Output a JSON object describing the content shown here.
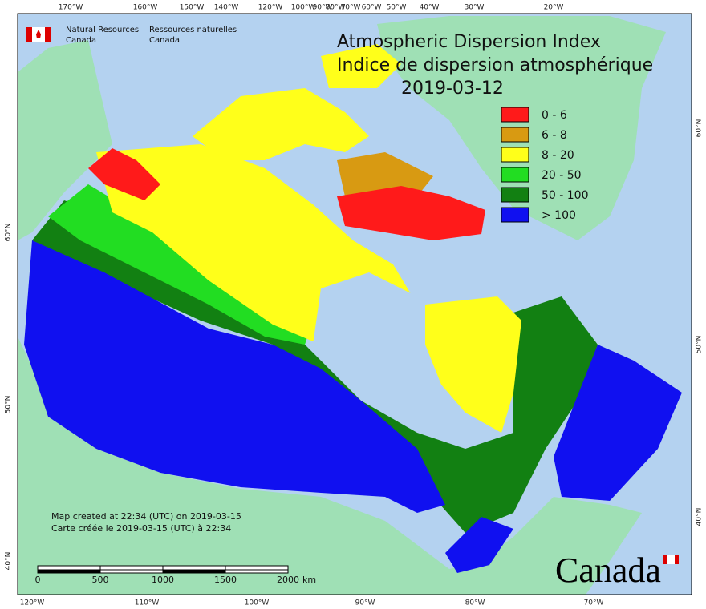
{
  "header": {
    "title_en": "Atmospheric Dispersion Index",
    "title_fr": "Indice de dispersion atmosphérique",
    "date": "2019-03-12"
  },
  "agency": {
    "en": [
      "Natural Resources",
      "Canada"
    ],
    "fr": [
      "Ressources naturelles",
      "Canada"
    ]
  },
  "legend": [
    {
      "label": "0 - 6",
      "color": "#ff1a1a"
    },
    {
      "label": "6 - 8",
      "color": "#d89a12"
    },
    {
      "label": "8 - 20",
      "color": "#ffff1a"
    },
    {
      "label": "20 - 50",
      "color": "#22dd22"
    },
    {
      "label": "50 - 100",
      "color": "#128012"
    },
    {
      "label": "> 100",
      "color": "#1010f0"
    }
  ],
  "graticule": {
    "top": [
      "170°W",
      "160°W",
      "150°W",
      "140°W",
      "120°W",
      "100°W",
      "90°W",
      "80°W",
      "70°W",
      "60°W",
      "50°W",
      "40°W",
      "30°W",
      "20°W"
    ],
    "bottom": [
      "120°W",
      "110°W",
      "100°W",
      "90°W",
      "80°W",
      "70°W"
    ],
    "left": [
      "60°N",
      "50°N",
      "40°N"
    ],
    "right": [
      "60°N",
      "50°N",
      "40°N"
    ]
  },
  "scale_bar": {
    "ticks": [
      "0",
      "500",
      "1000",
      "1500",
      "2000"
    ],
    "unit": "km"
  },
  "notes": [
    "Map created at 22:34 (UTC) on 2019-03-15",
    "Carte créée le 2019-03-15 (UTC) à 22:34"
  ],
  "wordmark": "Canada"
}
